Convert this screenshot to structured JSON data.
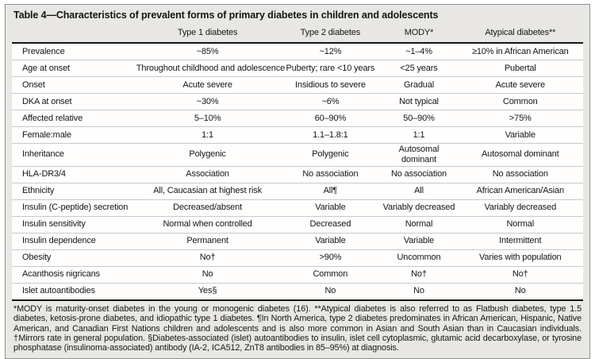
{
  "title": "Table 4—Characteristics of prevalent forms of primary diabetes in children and adolescents",
  "table": {
    "column_headers": {
      "label": "",
      "type1": "Type 1 diabetes",
      "type2": "Type 2 diabetes",
      "mody": "MODY*",
      "atypical": "Atypical diabetes**"
    },
    "rows": [
      {
        "label": "Prevalence",
        "type1": "~85%",
        "type2": "~12%",
        "mody": "~1–4%",
        "atypical": "≥10% in African American"
      },
      {
        "label": "Age at onset",
        "type1": "Throughout childhood and adolescence",
        "type2": "Puberty; rare <10 years",
        "mody": "<25 years",
        "atypical": "Pubertal"
      },
      {
        "label": "Onset",
        "type1": "Acute severe",
        "type2": "Insidious to severe",
        "mody": "Gradual",
        "atypical": "Acute severe"
      },
      {
        "label": "DKA at onset",
        "type1": "~30%",
        "type2": "~6%",
        "mody": "Not typical",
        "atypical": "Common"
      },
      {
        "label": "Affected relative",
        "type1": "5–10%",
        "type2": "60–90%",
        "mody": "50–90%",
        "atypical": ">75%"
      },
      {
        "label": "Female:male",
        "type1": "1:1",
        "type2": "1.1–1.8:1",
        "mody": "1:1",
        "atypical": "Variable"
      },
      {
        "label": "Inheritance",
        "type1": "Polygenic",
        "type2": "Polygenic",
        "mody": "Autosomal dominant",
        "atypical": "Autosomal dominant"
      },
      {
        "label": "HLA-DR3/4",
        "type1": "Association",
        "type2": "No association",
        "mody": "No association",
        "atypical": "No association"
      },
      {
        "label": "Ethnicity",
        "type1": "All, Caucasian at highest risk",
        "type2": "All¶",
        "mody": "All",
        "atypical": "African American/Asian"
      },
      {
        "label": "Insulin (C-peptide) secretion",
        "type1": "Decreased/absent",
        "type2": "Variable",
        "mody": "Variably decreased",
        "atypical": "Variably decreased"
      },
      {
        "label": "Insulin sensitivity",
        "type1": "Normal when controlled",
        "type2": "Decreased",
        "mody": "Normal",
        "atypical": "Normal"
      },
      {
        "label": "Insulin dependence",
        "type1": "Permanent",
        "type2": "Variable",
        "mody": "Variable",
        "atypical": "Intermittent"
      },
      {
        "label": "Obesity",
        "type1": "No†",
        "type2": ">90%",
        "mody": "Uncommon",
        "atypical": "Varies with population"
      },
      {
        "label": "Acanthosis nigricans",
        "type1": "No",
        "type2": "Common",
        "mody": "No†",
        "atypical": "No†"
      },
      {
        "label": "Islet autoantibodies",
        "type1": "Yes§",
        "type2": "No",
        "mody": "No",
        "atypical": "No"
      }
    ]
  },
  "footnote": "*MODY is maturity-onset diabetes in the young or monogenic diabetes (16). **Atypical diabetes is also referred to as Flatbush diabetes, type 1.5 diabetes, ketosis-prone diabetes, and idiopathic type 1 diabetes. ¶In North America, type 2 diabetes predominates in African American, Hispanic, Native American, and Canadian First Nations children and adolescents and is also more common in Asian and South Asian than in Caucasian individuals. †Mirrors rate in general population. §Diabetes-associated (islet) autoantibodies to insulin, islet cell cytoplasmic, glutamic acid decarboxylase, or tyrosine phosphatase (insulinoma-associated) antibody (IA-2, ICA512, ZnT8 antibodies in 85–95%) at diagnosis.",
  "colors": {
    "card_background": "#e8e7e4",
    "row_background": "#fffefd",
    "heavy_rule": "#151515",
    "row_separator": "#c9c9c9",
    "text": "#141414"
  }
}
